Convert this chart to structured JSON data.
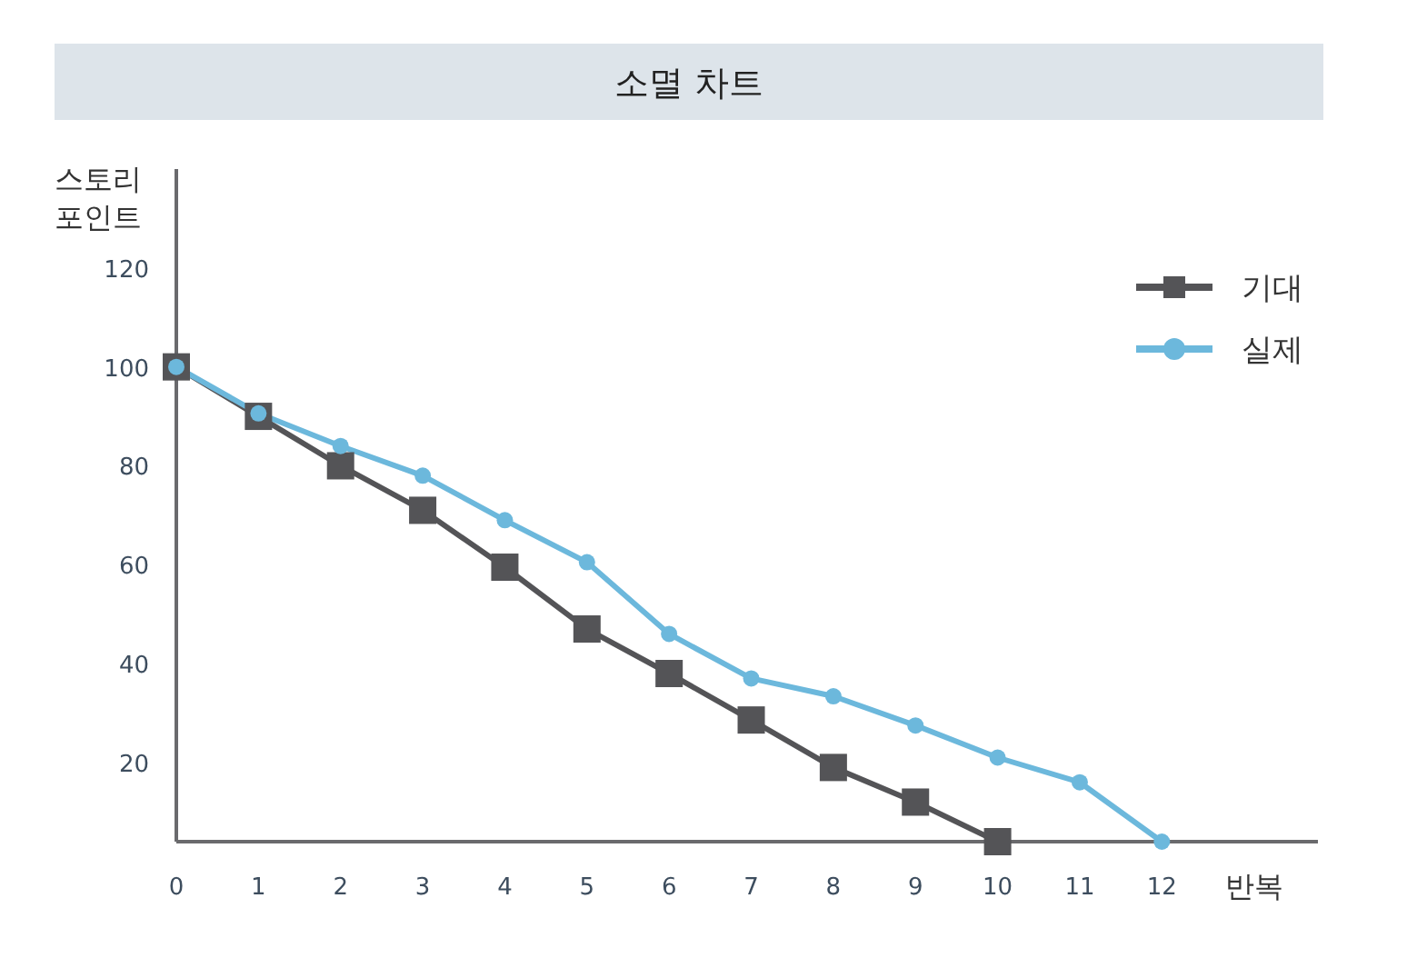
{
  "chart_data": {
    "type": "line",
    "title": "소멸 차트",
    "xlabel": "반복",
    "ylabel": "스토리 포인트",
    "x": [
      0,
      1,
      2,
      3,
      4,
      5,
      6,
      7,
      8,
      9,
      10,
      11,
      12
    ],
    "xlim": [
      0,
      13.9
    ],
    "xticks": [
      0,
      1,
      2,
      3,
      4,
      5,
      6,
      7,
      8,
      9,
      10,
      11,
      12
    ],
    "ylim": [
      4,
      140
    ],
    "yticks": [
      20,
      40,
      60,
      80,
      100,
      120
    ],
    "legend": "top right",
    "series": [
      {
        "name": "기대",
        "color": "#545457",
        "marker": "square",
        "values": [
          100,
          90,
          80,
          71,
          59.5,
          47,
          38,
          28.6,
          19,
          12,
          4,
          null,
          null
        ]
      },
      {
        "name": "실제",
        "color": "#6cb8dc",
        "marker": "circle",
        "values": [
          100,
          90.6,
          84,
          78,
          69,
          60.5,
          46,
          37,
          33.4,
          27.5,
          21,
          16,
          4
        ]
      }
    ]
  }
}
